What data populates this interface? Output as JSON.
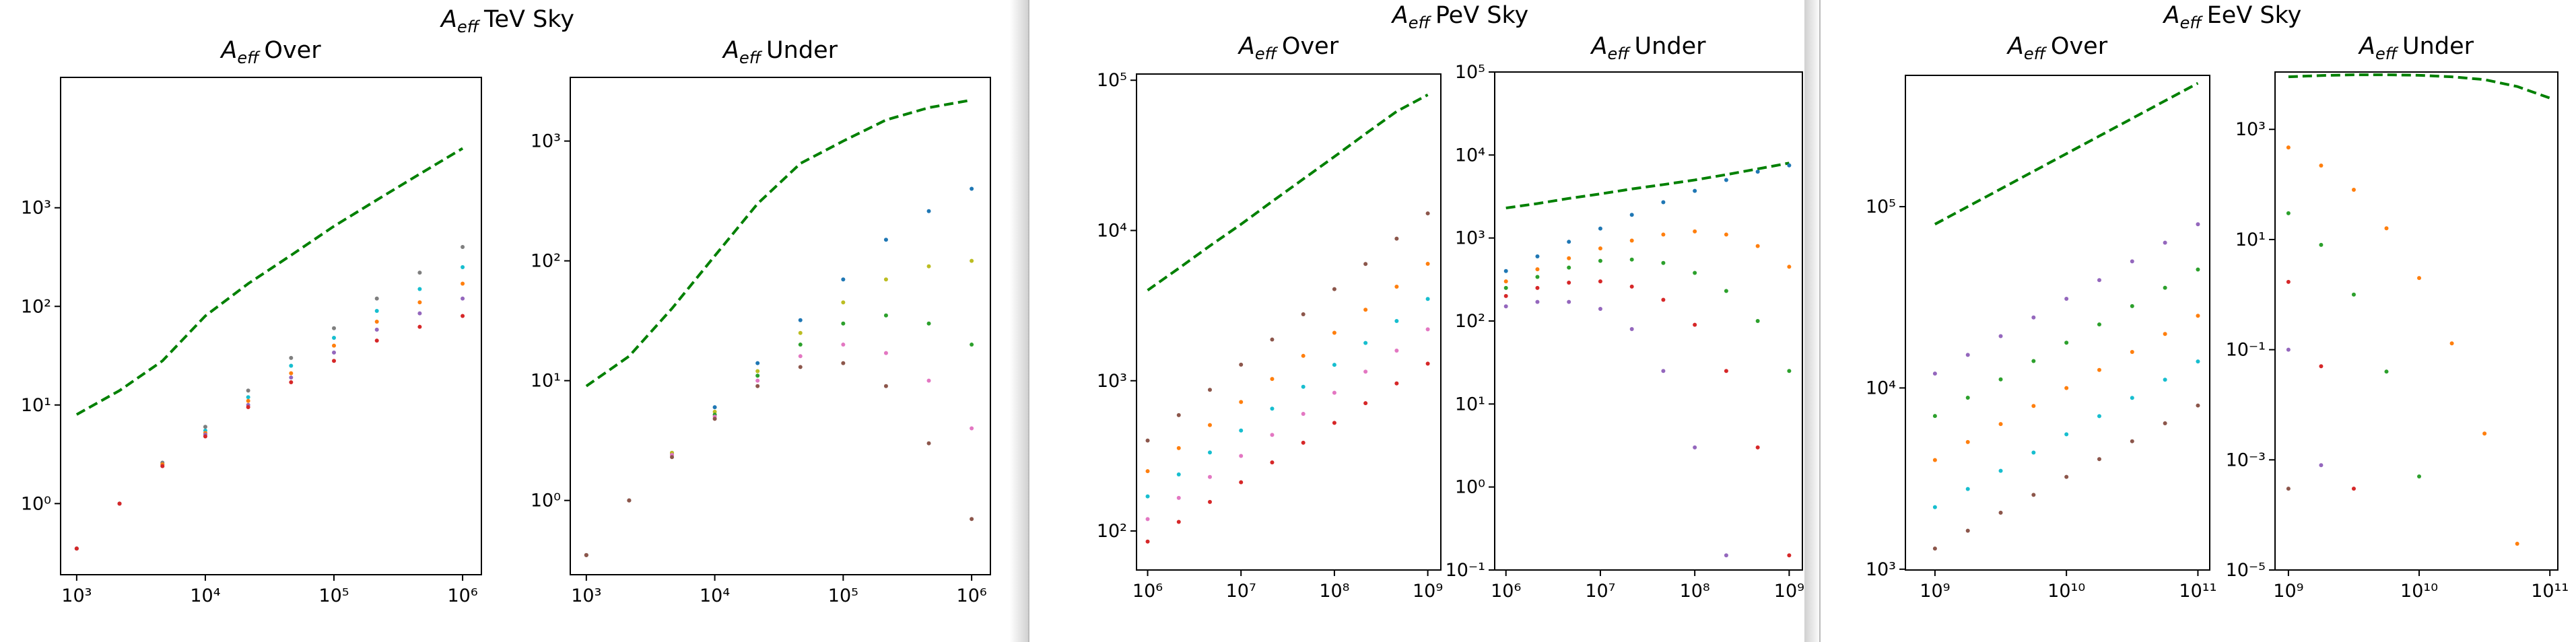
{
  "symbol": "A",
  "symbol_sub": "eff",
  "chart_data": [
    {
      "type": "scatter",
      "suptitle": "TeV Sky",
      "title": "Over",
      "xscale": "log",
      "yscale": "log",
      "x": [
        1000,
        2154,
        4642,
        10000,
        21544,
        46416,
        100000,
        215443,
        464159,
        1000000
      ],
      "xlim": [
        750,
        1400000
      ],
      "ylim": [
        0.19,
        21000
      ],
      "xticks": [
        {
          "value": 1000,
          "label": "10³"
        },
        {
          "value": 10000,
          "label": "10⁴"
        },
        {
          "value": 100000,
          "label": "10⁵"
        },
        {
          "value": 1000000,
          "label": "10⁶"
        }
      ],
      "yticks": [
        {
          "value": 1,
          "label": "10⁰"
        },
        {
          "value": 10,
          "label": "10¹"
        },
        {
          "value": 100,
          "label": "10²"
        },
        {
          "value": 1000,
          "label": "10³"
        }
      ],
      "series": [
        {
          "color": "#008000",
          "linestyle": "dashed",
          "values": [
            8,
            14,
            28,
            80,
            170,
            330,
            650,
            1200,
            2200,
            4000
          ]
        },
        {
          "color": "#7f7f7f",
          "linestyle": "dotted",
          "values": [
            0.35,
            1.0,
            2.6,
            6,
            14,
            30,
            60,
            120,
            220,
            400
          ]
        },
        {
          "color": "#17becf",
          "linestyle": "dotted",
          "values": [
            0.35,
            1.0,
            2.5,
            5.5,
            12,
            25,
            48,
            90,
            150,
            250
          ]
        },
        {
          "color": "#ff7f0e",
          "linestyle": "dotted",
          "values": [
            0.35,
            1.0,
            2.5,
            5.2,
            11,
            21,
            40,
            70,
            110,
            170
          ]
        },
        {
          "color": "#9467bd",
          "linestyle": "dotted",
          "values": [
            0.35,
            1.0,
            2.4,
            5,
            10,
            19,
            34,
            58,
            85,
            120
          ]
        },
        {
          "color": "#d62728",
          "linestyle": "dotted",
          "values": [
            0.35,
            1.0,
            2.4,
            4.8,
            9.5,
            17,
            28,
            45,
            62,
            80
          ]
        }
      ]
    },
    {
      "type": "scatter",
      "title": "Under",
      "xscale": "log",
      "yscale": "log",
      "x": [
        1000,
        2154,
        4642,
        10000,
        21544,
        46416,
        100000,
        215443,
        464159,
        1000000
      ],
      "xlim": [
        750,
        1400000
      ],
      "ylim": [
        0.24,
        3400
      ],
      "xticks": [
        {
          "value": 1000,
          "label": "10³"
        },
        {
          "value": 10000,
          "label": "10⁴"
        },
        {
          "value": 100000,
          "label": "10⁵"
        },
        {
          "value": 1000000,
          "label": "10⁶"
        }
      ],
      "yticks": [
        {
          "value": 1,
          "label": "10⁰"
        },
        {
          "value": 10,
          "label": "10¹"
        },
        {
          "value": 100,
          "label": "10²"
        },
        {
          "value": 1000,
          "label": "10³"
        }
      ],
      "series": [
        {
          "color": "#008000",
          "linestyle": "dashed",
          "values": [
            9,
            16,
            40,
            110,
            300,
            650,
            1000,
            1500,
            1900,
            2200
          ]
        },
        {
          "color": "#1f77b4",
          "linestyle": "dotted",
          "values": [
            0.35,
            1.0,
            2.5,
            6,
            14,
            32,
            70,
            150,
            260,
            400
          ]
        },
        {
          "color": "#bcbd22",
          "linestyle": "dotted",
          "values": [
            0.35,
            1.0,
            2.5,
            5.5,
            12,
            25,
            45,
            70,
            90,
            100
          ]
        },
        {
          "color": "#2ca02c",
          "linestyle": "dotted",
          "values": [
            0.35,
            1.0,
            2.4,
            5.2,
            11,
            20,
            30,
            35,
            30,
            20
          ]
        },
        {
          "color": "#e377c2",
          "linestyle": "dotted",
          "values": [
            0.35,
            1.0,
            2.4,
            5,
            10,
            16,
            20,
            17,
            10,
            4
          ]
        },
        {
          "color": "#8c564b",
          "linestyle": "dotted",
          "values": [
            0.35,
            1.0,
            2.3,
            4.8,
            9,
            13,
            14,
            9,
            3,
            0.7
          ]
        }
      ]
    },
    {
      "type": "scatter",
      "suptitle": "PeV Sky",
      "title": "Over",
      "xscale": "log",
      "yscale": "log",
      "x": [
        1000000,
        2154435,
        4641589,
        10000000,
        21544347,
        46415888,
        100000000,
        215443469,
        464158883,
        1000000000
      ],
      "xlim": [
        760000,
        1380000000
      ],
      "ylim": [
        55,
        110000
      ],
      "xticks": [
        {
          "value": 1000000,
          "label": "10⁶"
        },
        {
          "value": 10000000,
          "label": "10⁷"
        },
        {
          "value": 100000000,
          "label": "10⁸"
        },
        {
          "value": 1000000000,
          "label": "10⁹"
        }
      ],
      "yticks": [
        {
          "value": 100,
          "label": "10²"
        },
        {
          "value": 1000,
          "label": "10³"
        },
        {
          "value": 10000,
          "label": "10⁴"
        },
        {
          "value": 100000,
          "label": "10⁵"
        }
      ],
      "series": [
        {
          "color": "#008000",
          "linestyle": "dashed",
          "values": [
            4000,
            5600,
            7900,
            11000,
            15600,
            22000,
            31000,
            44000,
            62000,
            80000
          ]
        },
        {
          "color": "#8c564b",
          "linestyle": "dotted",
          "values": [
            400,
            590,
            870,
            1280,
            1880,
            2770,
            4070,
            5990,
            8820,
            13000
          ]
        },
        {
          "color": "#ff7f0e",
          "linestyle": "dotted",
          "values": [
            250,
            356,
            507,
            722,
            1028,
            1464,
            2085,
            2969,
            4228,
            6000
          ]
        },
        {
          "color": "#17becf",
          "linestyle": "dotted",
          "values": [
            170,
            238,
            333,
            466,
            652,
            912,
            1276,
            1785,
            2497,
            3500
          ]
        },
        {
          "color": "#e377c2",
          "linestyle": "dotted",
          "values": [
            120,
            166,
            229,
            316,
            436,
            602,
            832,
            1149,
            1586,
            2200
          ]
        },
        {
          "color": "#d62728",
          "linestyle": "dotted",
          "values": [
            85,
            115,
            156,
            211,
            286,
            387,
            524,
            709,
            960,
            1300
          ]
        }
      ]
    },
    {
      "type": "scatter",
      "title": "Under",
      "xscale": "log",
      "yscale": "log",
      "x": [
        1000000,
        2154435,
        4641589,
        10000000,
        21544347,
        46415888,
        100000000,
        215443469,
        464158883,
        1000000000
      ],
      "xlim": [
        760000,
        1380000000
      ],
      "ylim": [
        0.1,
        100000
      ],
      "xticks": [
        {
          "value": 1000000,
          "label": "10⁶"
        },
        {
          "value": 10000000,
          "label": "10⁷"
        },
        {
          "value": 100000000,
          "label": "10⁸"
        },
        {
          "value": 1000000000,
          "label": "10⁹"
        }
      ],
      "yticks": [
        {
          "value": 0.1,
          "label": "10⁻¹"
        },
        {
          "value": 1,
          "label": "10⁰"
        },
        {
          "value": 10,
          "label": "10¹"
        },
        {
          "value": 100,
          "label": "10²"
        },
        {
          "value": 1000,
          "label": "10³"
        },
        {
          "value": 10000,
          "label": "10⁴"
        },
        {
          "value": 100000,
          "label": "10⁵"
        }
      ],
      "series": [
        {
          "color": "#008000",
          "linestyle": "dashed",
          "values": [
            2300,
            2600,
            3000,
            3400,
            3900,
            4400,
            5000,
            5800,
            6800,
            8000
          ]
        },
        {
          "color": "#1f77b4",
          "linestyle": "dotted",
          "values": [
            400,
            600,
            900,
            1300,
            1900,
            2700,
            3700,
            5000,
            6300,
            7500
          ]
        },
        {
          "color": "#ff7f0e",
          "linestyle": "dotted",
          "values": [
            300,
            420,
            570,
            750,
            930,
            1100,
            1200,
            1100,
            800,
            450
          ]
        },
        {
          "color": "#2ca02c",
          "linestyle": "dotted",
          "values": [
            250,
            340,
            440,
            530,
            550,
            500,
            380,
            230,
            100,
            25
          ]
        },
        {
          "color": "#d62728",
          "linestyle": "dotted",
          "values": [
            200,
            250,
            290,
            300,
            260,
            180,
            90,
            25,
            3,
            0.15
          ]
        },
        {
          "color": "#9467bd",
          "linestyle": "dotted",
          "values": [
            150,
            170,
            170,
            140,
            80,
            25,
            3,
            0.15,
            null,
            null
          ]
        }
      ]
    },
    {
      "type": "scatter",
      "suptitle": "EeV Sky",
      "title": "Over",
      "xscale": "log",
      "yscale": "log",
      "x": [
        1000000000,
        1778279410,
        3162277660,
        5623413252,
        10000000000,
        17782794100,
        31622776602,
        56234132519,
        100000000000
      ],
      "xlim": [
        596000000,
        123000000000
      ],
      "ylim": [
        990,
        530000
      ],
      "xticks": [
        {
          "value": 1000000000,
          "label": "10⁹"
        },
        {
          "value": 10000000000,
          "label": "10¹⁰"
        },
        {
          "value": 100000000000,
          "label": "10¹¹"
        }
      ],
      "yticks": [
        {
          "value": 1000,
          "label": "10³"
        },
        {
          "value": 10000,
          "label": "10⁴"
        },
        {
          "value": 100000,
          "label": "10⁵"
        }
      ],
      "series": [
        {
          "color": "#008000",
          "linestyle": "dashed",
          "values": [
            80000,
            100100,
            125200,
            156700,
            196000,
            245200,
            306800,
            383800,
            480000
          ]
        },
        {
          "color": "#9467bd",
          "linestyle": "dotted",
          "values": [
            12000,
            15220,
            19300,
            24470,
            31030,
            39350,
            49900,
            63280,
            80000
          ]
        },
        {
          "color": "#2ca02c",
          "linestyle": "dotted",
          "values": [
            7000,
            8830,
            11150,
            14070,
            17760,
            22410,
            28280,
            35690,
            45000
          ]
        },
        {
          "color": "#ff7f0e",
          "linestyle": "dotted",
          "values": [
            4000,
            5030,
            6320,
            7950,
            9990,
            12560,
            15790,
            19850,
            25000
          ]
        },
        {
          "color": "#17becf",
          "linestyle": "dotted",
          "values": [
            2200,
            2770,
            3490,
            4400,
            5550,
            6990,
            8810,
            11100,
            14000
          ]
        },
        {
          "color": "#8c564b",
          "linestyle": "dotted",
          "values": [
            1300,
            1630,
            2050,
            2570,
            3230,
            4050,
            5080,
            6380,
            8000
          ]
        }
      ]
    },
    {
      "type": "scatter",
      "title": "Under",
      "xscale": "log",
      "yscale": "log",
      "x": [
        1000000000,
        1778279410,
        3162277660,
        5623413252,
        10000000000,
        17782794100,
        31622776602,
        56234132519,
        100000000000
      ],
      "xlim": [
        790000000,
        115000000000
      ],
      "ylim": [
        1e-05,
        11000
      ],
      "xticks": [
        {
          "value": 1000000000,
          "label": "10⁹"
        },
        {
          "value": 10000000000,
          "label": "10¹⁰"
        },
        {
          "value": 100000000000,
          "label": "10¹¹"
        }
      ],
      "yticks": [
        {
          "value": 1e-05,
          "label": "10⁻⁵"
        },
        {
          "value": 0.001,
          "label": "10⁻³"
        },
        {
          "value": 0.1,
          "label": "10⁻¹"
        },
        {
          "value": 10,
          "label": "10¹"
        },
        {
          "value": 1000,
          "label": "10³"
        }
      ],
      "series": [
        {
          "color": "#008000",
          "linestyle": "dashed",
          "values": [
            9000,
            9500,
            9800,
            9800,
            9600,
            9000,
            8000,
            6000,
            3700
          ]
        },
        {
          "color": "#ff7f0e",
          "linestyle": "dotted",
          "values": [
            470,
            220,
            80,
            16,
            2,
            0.13,
            0.003,
            3e-05,
            null
          ]
        },
        {
          "color": "#2ca02c",
          "linestyle": "dotted",
          "values": [
            30,
            8,
            1,
            0.04,
            0.0005,
            null,
            null,
            null,
            null
          ]
        },
        {
          "color": "#d62728",
          "linestyle": "dotted",
          "values": [
            1.7,
            0.05,
            0.0003,
            null,
            null,
            null,
            null,
            null,
            null
          ]
        },
        {
          "color": "#9467bd",
          "linestyle": "dotted",
          "values": [
            0.1,
            0.0008,
            null,
            null,
            null,
            null,
            null,
            null,
            null
          ]
        },
        {
          "color": "#8c564b",
          "linestyle": "dotted",
          "values": [
            0.0003,
            null,
            null,
            null,
            null,
            null,
            null,
            null,
            null
          ]
        }
      ]
    }
  ]
}
